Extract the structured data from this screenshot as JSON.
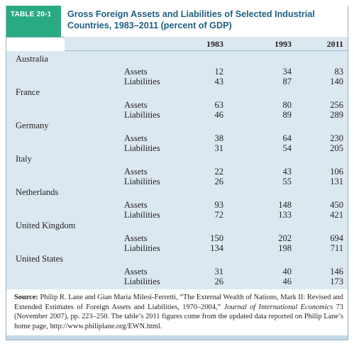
{
  "table": {
    "tag": "TABLE 20-1",
    "title": "Gross Foreign Assets and Liabilities of Selected Industrial Countries, 1983–2011 (percent of GDP)",
    "columns": [
      "1983",
      "1993",
      "2011"
    ],
    "row_labels": [
      "Assets",
      "Liabilities"
    ],
    "countries": [
      {
        "name": "Australia",
        "assets": [
          "12",
          "34",
          "83"
        ],
        "liabilities": [
          "43",
          "87",
          "140"
        ]
      },
      {
        "name": "France",
        "assets": [
          "63",
          "80",
          "256"
        ],
        "liabilities": [
          "46",
          "89",
          "289"
        ]
      },
      {
        "name": "Germany",
        "assets": [
          "38",
          "64",
          "230"
        ],
        "liabilities": [
          "31",
          "54",
          "205"
        ]
      },
      {
        "name": "Italy",
        "assets": [
          "22",
          "43",
          "106"
        ],
        "liabilities": [
          "26",
          "55",
          "131"
        ]
      },
      {
        "name": "Netherlands",
        "assets": [
          "93",
          "148",
          "450"
        ],
        "liabilities": [
          "72",
          "133",
          "421"
        ]
      },
      {
        "name": "United Kingdom",
        "assets": [
          "150",
          "202",
          "694"
        ],
        "liabilities": [
          "134",
          "198",
          "711"
        ]
      },
      {
        "name": "United States",
        "assets": [
          "31",
          "40",
          "146"
        ],
        "liabilities": [
          "26",
          "46",
          "173"
        ]
      }
    ]
  },
  "source": {
    "label": "Source:",
    "text_1": " Philip R. Lane and Gian Maria Milesi-Ferretti, “The External Wealth of Nations, Mark II: Revised and Extended Estimates of Foreign Assets and Liabilities, 1970–2004,” ",
    "journal": "Journal of International Economics",
    "text_2": " 73 (November 2007), pp. 223–250. The table’s 2011 figures come from the updated data reported on Philip Lane’s home page, http://www.philiplane.org/EWN.html."
  }
}
